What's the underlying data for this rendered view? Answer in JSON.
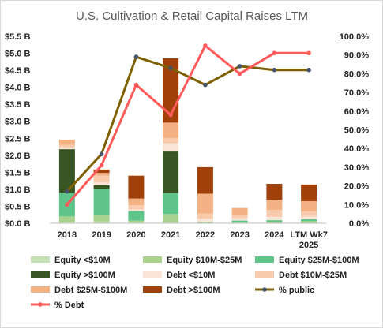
{
  "chart_data": {
    "type": "bar",
    "title": "U.S. Cultivation & Retail Capital Raises LTM",
    "categories": [
      "2018",
      "2019",
      "2020",
      "2021",
      "2022",
      "2023",
      "2024",
      "LTM Wk7 2025"
    ],
    "x_tick_lines": [
      [
        "2018"
      ],
      [
        "2019"
      ],
      [
        "2020"
      ],
      [
        "2021"
      ],
      [
        "2022"
      ],
      [
        "2023"
      ],
      [
        "2024"
      ],
      [
        "LTM Wk7",
        "2025"
      ]
    ],
    "stacked": true,
    "ylim": [
      0,
      5.5
    ],
    "y_ticks": [
      "$0.0 B",
      "$0.5 B",
      "$1.0 B",
      "$1.5 B",
      "$2.0 B",
      "$2.5 B",
      "$3.0 B",
      "$3.5 B",
      "$4.0 B",
      "$4.5 B",
      "$5.0 B",
      "$5.5 B"
    ],
    "y2lim": [
      0,
      100
    ],
    "y2_ticks": [
      "0.0%",
      "10.0%",
      "20.0%",
      "30.0%",
      "40.0%",
      "50.0%",
      "60.0%",
      "70.0%",
      "80.0%",
      "90.0%",
      "100.0%"
    ],
    "series": [
      {
        "name": "Equity <$10M",
        "color": "#c5e0b4",
        "values": [
          0.03,
          0.05,
          0.02,
          0.04,
          0.01,
          0.01,
          0.01,
          0.01
        ]
      },
      {
        "name": "Equity $10M-$25M",
        "color": "#a9d18e",
        "values": [
          0.17,
          0.2,
          0.06,
          0.23,
          0.03,
          0.02,
          0.03,
          0.05
        ]
      },
      {
        "name": "Equity $25M-$100M",
        "color": "#5ec48a",
        "values": [
          0.7,
          0.75,
          0.28,
          0.62,
          0.0,
          0.05,
          0.05,
          0.06
        ]
      },
      {
        "name": "Equity >$100M",
        "color": "#375623",
        "values": [
          1.28,
          0.12,
          0.0,
          1.22,
          0.0,
          0.0,
          0.0,
          0.0
        ]
      },
      {
        "name": "Debt <$10M",
        "color": "#fbe5d6",
        "values": [
          0.05,
          0.08,
          0.05,
          0.24,
          0.1,
          0.07,
          0.1,
          0.08
        ]
      },
      {
        "name": "Debt $10M-$25M",
        "color": "#f8cbad",
        "values": [
          0.08,
          0.2,
          0.12,
          0.16,
          0.15,
          0.1,
          0.2,
          0.15
        ]
      },
      {
        "name": "Debt $25M-$100M",
        "color": "#f4b183",
        "values": [
          0.15,
          0.08,
          0.2,
          0.45,
          0.58,
          0.2,
          0.3,
          0.3
        ]
      },
      {
        "name": "Debt >$100M",
        "color": "#a0400b",
        "values": [
          0.0,
          0.1,
          0.67,
          1.89,
          0.78,
          0.0,
          0.47,
          0.49
        ]
      }
    ],
    "lines": [
      {
        "name": "% public",
        "color": "#7f6000",
        "marker_color": "#44546a",
        "axis": "right",
        "values": [
          17,
          37,
          89,
          83,
          74,
          84,
          82,
          82
        ]
      },
      {
        "name": "% Debt",
        "color": "#ff5b5b",
        "marker_color": "#ff5b5b",
        "axis": "right",
        "values": [
          10,
          31,
          74,
          58,
          95,
          80,
          91,
          91
        ]
      }
    ],
    "legend": {
      "position": "bottom",
      "entries": [
        "Equity <$10M",
        "Equity $10M-$25M",
        "Equity $25M-$100M",
        "Equity >$100M",
        "Debt <$10M",
        "Debt $10M-$25M",
        "Debt $25M-$100M",
        "Debt >$100M",
        "% public",
        "% Debt"
      ]
    },
    "grid": false
  }
}
